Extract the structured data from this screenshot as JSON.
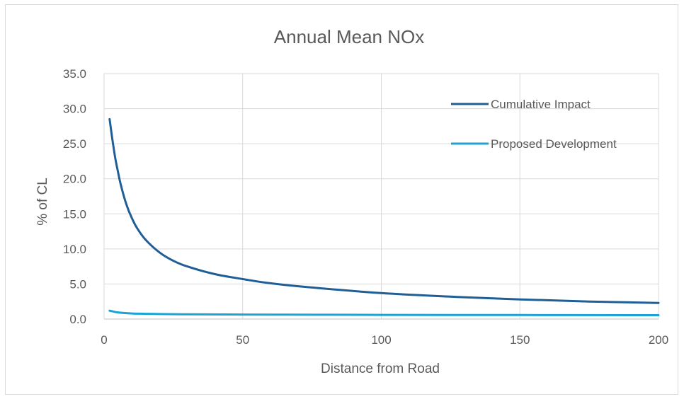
{
  "chart_data": {
    "type": "line",
    "title": "Annual Mean NOx",
    "xlabel": "Distance from Road",
    "ylabel": "% of CL",
    "xlim": [
      0,
      200
    ],
    "ylim": [
      0,
      35
    ],
    "x_ticks": [
      0,
      50,
      100,
      150,
      200
    ],
    "y_ticks": [
      "0.0",
      "5.0",
      "10.0",
      "15.0",
      "20.0",
      "25.0",
      "30.0",
      "35.0"
    ],
    "grid": "major x and y",
    "legend_position": "top-right, inside plot",
    "series": [
      {
        "name": "Cumulative Impact",
        "color": "#1f5f96",
        "x": [
          2,
          3,
          4,
          5,
          6,
          8,
          10,
          12,
          15,
          20,
          25,
          30,
          40,
          50,
          60,
          75,
          100,
          125,
          150,
          175,
          200
        ],
        "y": [
          28.5,
          25.6,
          23.0,
          21.0,
          19.2,
          16.4,
          14.4,
          12.9,
          11.3,
          9.5,
          8.3,
          7.5,
          6.4,
          5.7,
          5.1,
          4.5,
          3.7,
          3.2,
          2.8,
          2.5,
          2.3
        ]
      },
      {
        "name": "Proposed Development",
        "color": "#1ba3d6",
        "x": [
          2,
          5,
          10,
          15,
          20,
          30,
          50,
          75,
          100,
          150,
          200
        ],
        "y": [
          1.2,
          0.95,
          0.8,
          0.75,
          0.72,
          0.68,
          0.65,
          0.62,
          0.6,
          0.57,
          0.55
        ]
      }
    ]
  }
}
